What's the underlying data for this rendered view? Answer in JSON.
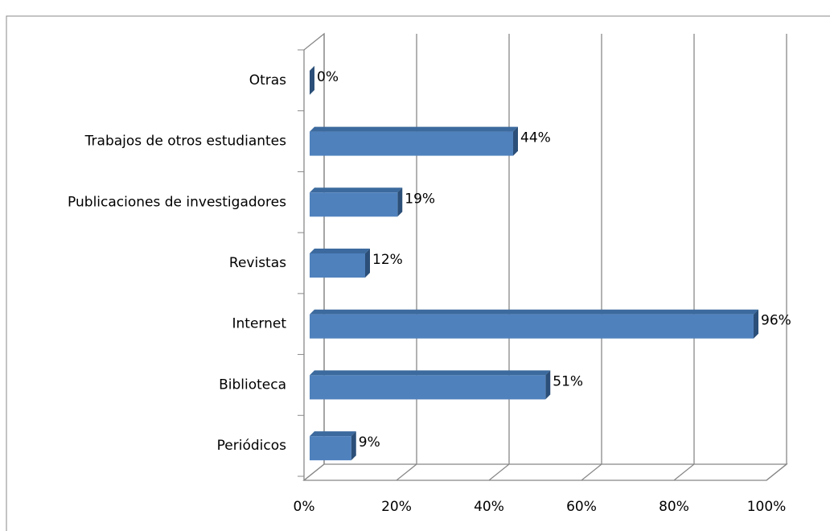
{
  "chart_data": {
    "type": "bar",
    "orientation": "horizontal",
    "categories": [
      "Periódicos",
      "Biblioteca",
      "Internet",
      "Revistas",
      "Publicaciones de investigadores",
      "Trabajos de otros estudiantes",
      "Otras"
    ],
    "values": [
      9,
      51,
      96,
      12,
      19,
      44,
      0
    ],
    "value_labels": [
      "9%",
      "51%",
      "96%",
      "12%",
      "19%",
      "44%",
      "0%"
    ],
    "color": "#4f81bd",
    "xlim": [
      0,
      100
    ],
    "xticks": [
      {
        "value": 0,
        "label": "0%"
      },
      {
        "value": 20,
        "label": "20%"
      },
      {
        "value": 40,
        "label": "40%"
      },
      {
        "value": 60,
        "label": "60%"
      },
      {
        "value": 80,
        "label": "80%"
      },
      {
        "value": 100,
        "label": "100%"
      }
    ],
    "grid": true
  }
}
